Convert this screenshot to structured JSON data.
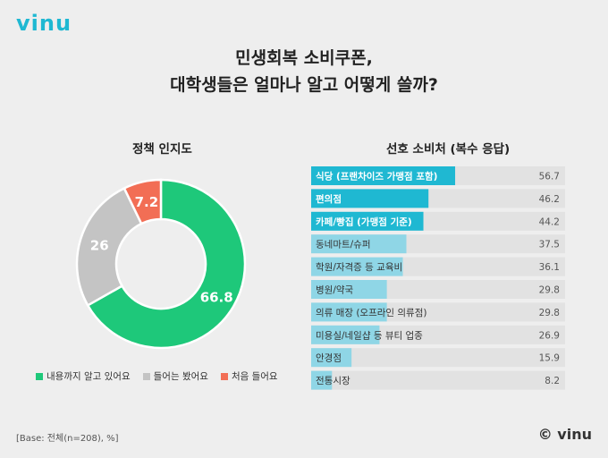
{
  "header": {
    "logo": "vinu"
  },
  "title": {
    "line1": "민생회복 소비쿠폰,",
    "line2": "대학생들은 얼마나 알고 어떻게 쓸까?"
  },
  "chart_data": [
    {
      "type": "pie",
      "title": "정책 인지도",
      "categories": [
        "내용까지 알고 있어요",
        "들어는 봤어요",
        "처음 들어요"
      ],
      "values": [
        66.8,
        26,
        7.2
      ],
      "value_labels": [
        "66.8",
        "26",
        "7.2"
      ],
      "colors": [
        "#1ec87a",
        "#c4c4c4",
        "#f26e55"
      ],
      "legend": "bottom"
    },
    {
      "type": "bar",
      "title": "선호 소비처 (복수 응답)",
      "categories": [
        "식당 (프랜차이즈 가맹점 포함)",
        "편의점",
        "카페/빵집 (가맹점 기준)",
        "동네마트/슈퍼",
        "학원/자격증 등 교육비",
        "병원/약국",
        "의류 매장 (오프라인 의류점)",
        "미용실/네일샵 등 뷰티 업종",
        "안경점",
        "전통시장"
      ],
      "values": [
        56.7,
        46.2,
        44.2,
        37.5,
        36.1,
        29.8,
        29.8,
        26.9,
        15.9,
        8.2
      ],
      "value_labels": [
        "56.7",
        "46.2",
        "44.2",
        "37.5",
        "36.1",
        "29.8",
        "29.8",
        "26.9",
        "15.9",
        "8.2"
      ],
      "highlight_top": 3,
      "colors": {
        "highlight": "#1fb8d2",
        "normal": "#8fd6e6",
        "track": "#e2e2e2"
      },
      "xlim": [
        0,
        100
      ]
    }
  ],
  "footer": {
    "base": "[Base: 전체(n=208), %]",
    "copyright": "© vinu"
  }
}
